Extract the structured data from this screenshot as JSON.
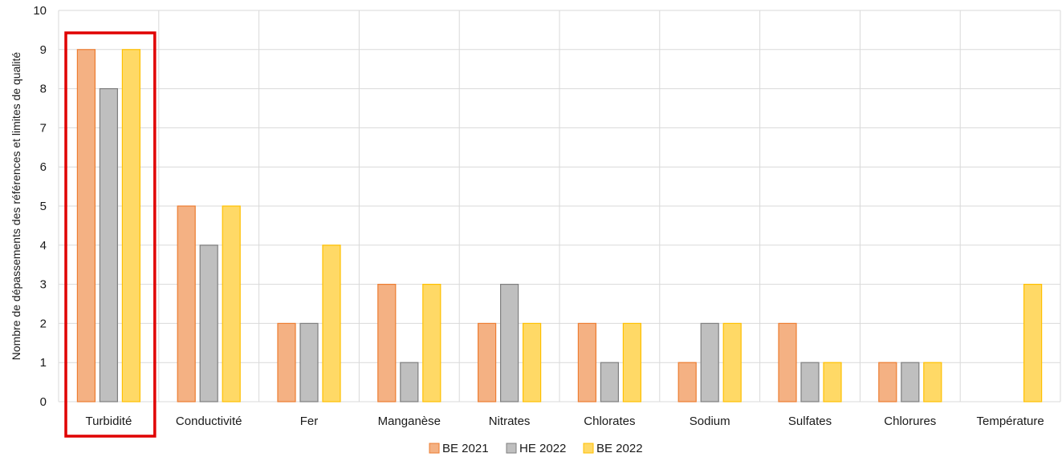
{
  "chart_data": {
    "type": "bar",
    "ylabel": "Nombre de dépassements des références et limites de qualité",
    "ylim": [
      0,
      10
    ],
    "yticks": [
      "0",
      "1",
      "2",
      "3",
      "4",
      "5",
      "6",
      "7",
      "8",
      "9",
      "10"
    ],
    "grid": true,
    "legend_position": "bottom",
    "categories": [
      "Turbidité",
      "Conductivité",
      "Fer",
      "Manganèse",
      "Nitrates",
      "Chlorates",
      "Sodium",
      "Sulfates",
      "Chlorures",
      "Température"
    ],
    "highlighted_category": "Turbidité",
    "series": [
      {
        "name": "BE 2021",
        "color": "#F4B183",
        "edge": "#ED7D31",
        "values": [
          9,
          5,
          2,
          3,
          2,
          2,
          1,
          2,
          1,
          0
        ]
      },
      {
        "name": "HE 2022",
        "color": "#BFBFBF",
        "edge": "#7F7F7F",
        "values": [
          8,
          4,
          2,
          1,
          3,
          1,
          2,
          1,
          1,
          0
        ]
      },
      {
        "name": "BE 2022",
        "color": "#FFD966",
        "edge": "#FFC000",
        "values": [
          9,
          5,
          4,
          3,
          2,
          2,
          2,
          1,
          1,
          3
        ]
      }
    ],
    "highlight_color": "#E00000"
  }
}
